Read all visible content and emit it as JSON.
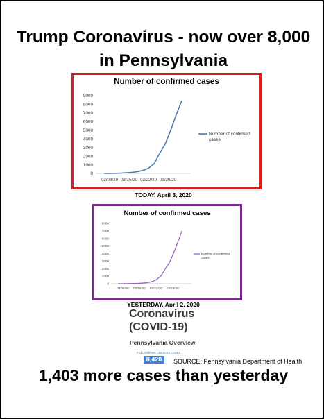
{
  "headline": {
    "line1": "Trump Coronavirus - now over 8,000",
    "line2": "in Pennsylvania"
  },
  "captions": {
    "today": "TODAY, April 3, 2020",
    "yesterday": "YESTERDAY, April 2, 2020"
  },
  "covid_panel": {
    "title_line1": "Coronavirus",
    "title_line2": "(COVID-19)",
    "subtitle": "Pennsylvania Overview",
    "count_label": "# of Confirmed COVID-19 CASES",
    "count_value": "8,420"
  },
  "source": "SOURCE: Pennsylvania Department of Health",
  "bottom_line": "1,403 more cases than yesterday",
  "chart_data": [
    {
      "type": "line",
      "title": "Number of confirmed cases",
      "color": "#4a7bb0",
      "legend_position": "right",
      "series": [
        {
          "name": "Number of confirmed cases",
          "x": [
            "2020-03-06",
            "2020-03-08",
            "2020-03-10",
            "2020-03-12",
            "2020-03-14",
            "2020-03-16",
            "2020-03-18",
            "2020-03-20",
            "2020-03-22",
            "2020-03-24",
            "2020-03-26",
            "2020-03-28",
            "2020-03-30",
            "2020-04-01",
            "2020-04-03"
          ],
          "y": [
            0,
            10,
            15,
            40,
            80,
            110,
            200,
            350,
            600,
            1100,
            2300,
            3400,
            5000,
            6800,
            8420
          ]
        }
      ],
      "x_ticks": [
        "03/08/20",
        "03/15/20",
        "03/22/20",
        "03/29/20"
      ],
      "xlim": [
        "2020-03-03",
        "2020-04-06"
      ],
      "ylim": [
        0,
        9000
      ],
      "y_ticks": [
        0,
        1000,
        2000,
        3000,
        4000,
        5000,
        6000,
        7000,
        8000,
        9000
      ],
      "grid": false
    },
    {
      "type": "line",
      "title": "Number of confirmed cases",
      "color": "#9a66c4",
      "legend_position": "right",
      "series": [
        {
          "name": "Number of confirmed cases",
          "x": [
            "2020-03-06",
            "2020-03-08",
            "2020-03-10",
            "2020-03-12",
            "2020-03-14",
            "2020-03-16",
            "2020-03-18",
            "2020-03-20",
            "2020-03-22",
            "2020-03-24",
            "2020-03-26",
            "2020-03-28",
            "2020-03-30",
            "2020-04-02"
          ],
          "y": [
            0,
            5,
            15,
            30,
            50,
            70,
            130,
            250,
            500,
            1000,
            2000,
            3000,
            4500,
            7017
          ]
        }
      ],
      "x_ticks": [
        "03/08/20",
        "03/15/20",
        "03/22/20",
        "03/29/20"
      ],
      "xlim": [
        "2020-03-03",
        "2020-04-06"
      ],
      "ylim": [
        0,
        8000
      ],
      "y_ticks": [
        0,
        1000,
        2000,
        3000,
        4000,
        5000,
        6000,
        7000,
        8000
      ],
      "grid": false
    }
  ]
}
